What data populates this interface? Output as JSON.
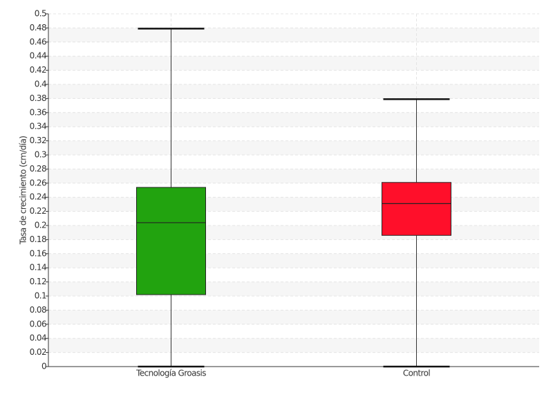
{
  "chart_data": {
    "type": "box",
    "ylabel": "Tasa de crecimiento (cm/día)",
    "categories": [
      "Tecnología Groasis",
      "Control"
    ],
    "boxes": [
      {
        "min": 0,
        "q1": 0.102,
        "median": 0.204,
        "q3": 0.254,
        "max": 0.479,
        "color": "#22a30f"
      },
      {
        "min": 0,
        "q1": 0.186,
        "median": 0.231,
        "q3": 0.261,
        "max": 0.379,
        "color": "#ff0f2a"
      }
    ],
    "ylim": [
      0,
      0.5
    ],
    "yticks": [
      0,
      0.02,
      0.04,
      0.06,
      0.08,
      0.1,
      0.12,
      0.14,
      0.16,
      0.18,
      0.2,
      0.22,
      0.24,
      0.26,
      0.28,
      0.3,
      0.32,
      0.34,
      0.36,
      0.38,
      0.4,
      0.42,
      0.44,
      0.46,
      0.48,
      0.5
    ],
    "grid": true
  }
}
